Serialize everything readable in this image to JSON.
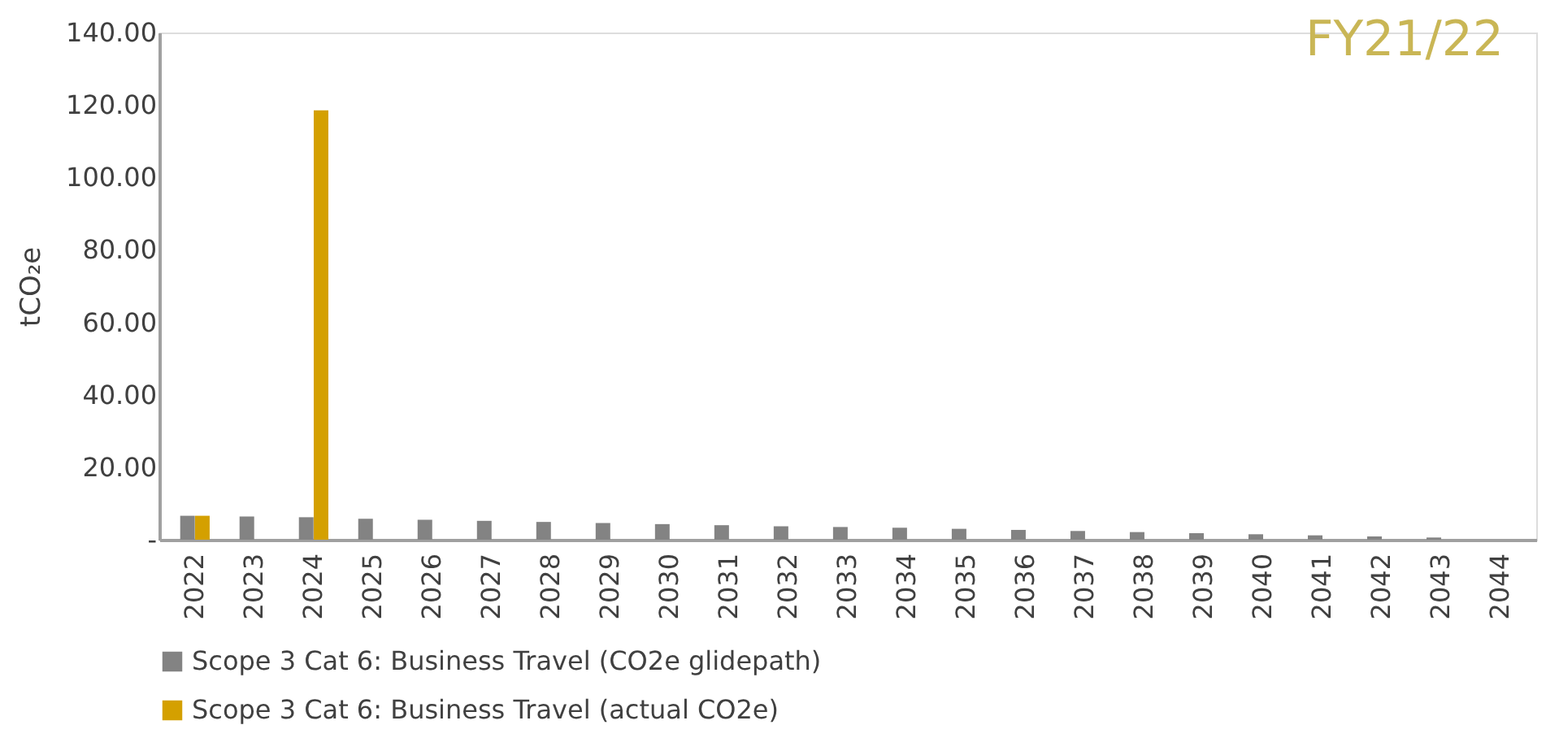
{
  "chart_data": {
    "type": "bar",
    "ylabel": "tCO₂e",
    "categories": [
      "2022",
      "2023",
      "2024",
      "2025",
      "2026",
      "2027",
      "2028",
      "2029",
      "2030",
      "2031",
      "2032",
      "2033",
      "2034",
      "2035",
      "2036",
      "2037",
      "2038",
      "2039",
      "2040",
      "2041",
      "2042",
      "2043",
      "2044"
    ],
    "series": [
      {
        "name": "Scope 3 Cat 6: Business Travel (CO2e glidepath)",
        "color": "#838383",
        "values": [
          6.6,
          6.4,
          6.2,
          5.8,
          5.5,
          5.2,
          4.9,
          4.6,
          4.3,
          4.0,
          3.7,
          3.5,
          3.3,
          3.0,
          2.7,
          2.4,
          2.1,
          1.8,
          1.5,
          1.2,
          0.9,
          0.6,
          null
        ]
      },
      {
        "name": "Scope 3 Cat 6: Business Travel (actual CO2e)",
        "color": "#d4a000",
        "values": [
          6.6,
          null,
          118.5,
          null,
          null,
          null,
          null,
          null,
          null,
          null,
          null,
          null,
          null,
          null,
          null,
          null,
          null,
          null,
          null,
          null,
          null,
          null,
          null
        ]
      }
    ],
    "ylim": [
      0,
      140
    ],
    "yticks": [
      {
        "value": 0,
        "label": "-"
      },
      {
        "value": 20,
        "label": "20.00"
      },
      {
        "value": 40,
        "label": "40.00"
      },
      {
        "value": 60,
        "label": "60.00"
      },
      {
        "value": 80,
        "label": "80.00"
      },
      {
        "value": 100,
        "label": "100.00"
      },
      {
        "value": 120,
        "label": "120.00"
      },
      {
        "value": 140,
        "label": "140.00"
      }
    ],
    "annotations": [
      "FY21/22"
    ],
    "grid": false,
    "legend": "bottom"
  }
}
